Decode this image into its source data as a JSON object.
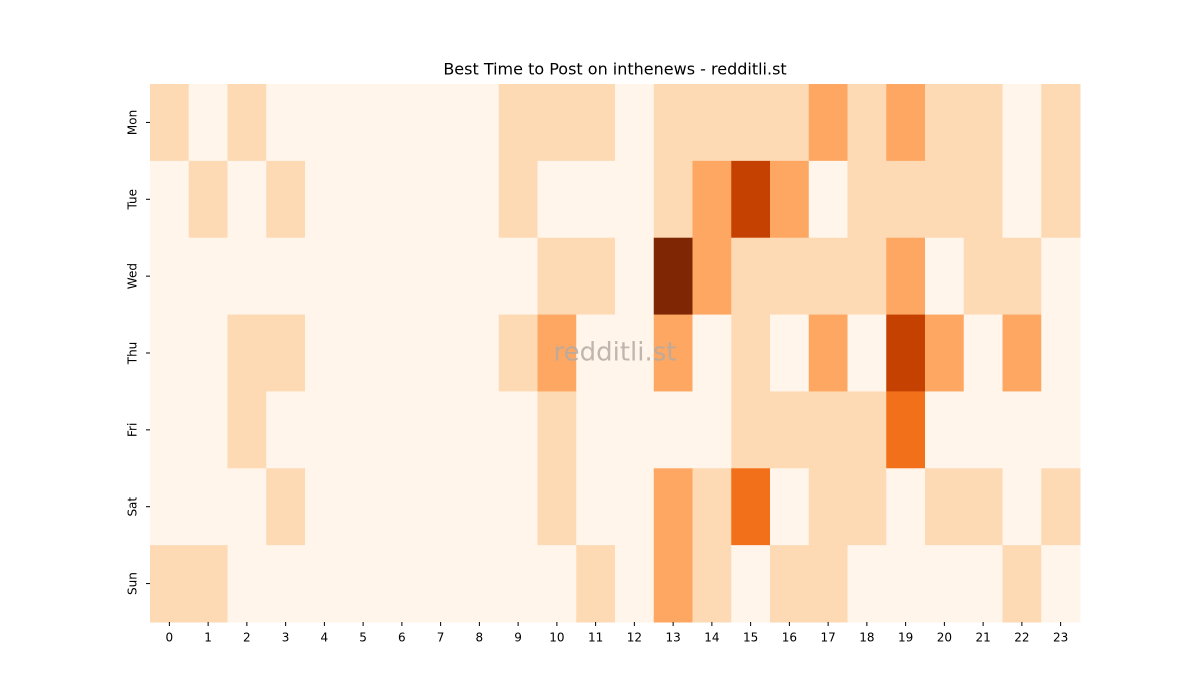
{
  "chart_data": {
    "type": "heatmap",
    "title": "Best Time to Post on inthenews - redditli.st",
    "watermark": "redditli.st",
    "x_categories": [
      "0",
      "1",
      "2",
      "3",
      "4",
      "5",
      "6",
      "7",
      "8",
      "9",
      "10",
      "11",
      "12",
      "13",
      "14",
      "15",
      "16",
      "17",
      "18",
      "19",
      "20",
      "21",
      "22",
      "23"
    ],
    "y_categories": [
      "Mon",
      "Tue",
      "Wed",
      "Thu",
      "Fri",
      "Sat",
      "Sun"
    ],
    "values": [
      [
        1,
        0,
        1,
        0,
        0,
        0,
        0,
        0,
        0,
        1,
        1,
        1,
        0,
        1,
        1,
        1,
        1,
        2,
        1,
        2,
        1,
        1,
        0,
        1
      ],
      [
        0,
        1,
        0,
        1,
        0,
        0,
        0,
        0,
        0,
        1,
        0,
        0,
        0,
        1,
        2,
        4,
        2,
        0,
        1,
        1,
        1,
        1,
        0,
        1
      ],
      [
        0,
        0,
        0,
        0,
        0,
        0,
        0,
        0,
        0,
        0,
        1,
        1,
        0,
        5,
        2,
        1,
        1,
        1,
        1,
        2,
        0,
        1,
        1,
        0
      ],
      [
        0,
        0,
        1,
        1,
        0,
        0,
        0,
        0,
        0,
        1,
        2,
        0,
        0,
        2,
        0,
        1,
        0,
        2,
        0,
        4,
        2,
        0,
        2,
        0
      ],
      [
        0,
        0,
        1,
        0,
        0,
        0,
        0,
        0,
        0,
        0,
        1,
        0,
        0,
        0,
        0,
        1,
        1,
        1,
        1,
        3,
        0,
        0,
        0,
        0
      ],
      [
        0,
        0,
        0,
        1,
        0,
        0,
        0,
        0,
        0,
        0,
        1,
        0,
        0,
        2,
        1,
        3,
        0,
        1,
        1,
        0,
        1,
        1,
        0,
        1
      ],
      [
        1,
        1,
        0,
        0,
        0,
        0,
        0,
        0,
        0,
        0,
        0,
        1,
        0,
        2,
        1,
        0,
        1,
        1,
        0,
        0,
        0,
        0,
        1,
        0
      ]
    ],
    "vlim": [
      0,
      5
    ],
    "colormap": [
      "#fff5eb",
      "#fdd9b4",
      "#fda762",
      "#f3701b",
      "#c54102",
      "#7f2704"
    ]
  }
}
